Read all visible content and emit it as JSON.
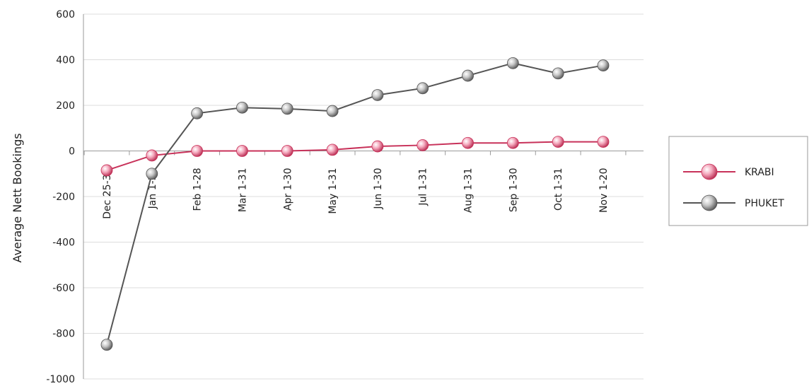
{
  "chart_data": {
    "type": "line",
    "ylabel": "Average Nett Bookings",
    "xlabel": "",
    "ylim": [
      -1000,
      600
    ],
    "yticks": [
      600,
      400,
      200,
      0,
      -200,
      -400,
      -600,
      -800,
      -1000
    ],
    "grid": true,
    "legend_position": "right",
    "categories": [
      "Dec 25-31",
      "Jan 1-31",
      "Feb 1-28",
      "Mar 1-31",
      "Apr 1-30",
      "May 1-31",
      "Jun 1-30",
      "Jul 1-31",
      "Aug 1-31",
      "Sep 1-30",
      "Oct 1-31",
      "Nov 1-20"
    ],
    "series": [
      {
        "name": "KRABI",
        "color": "#c8325a",
        "marker_color": "#f3a2b8",
        "values": [
          -85,
          -20,
          0,
          0,
          0,
          5,
          20,
          25,
          35,
          35,
          40,
          40
        ]
      },
      {
        "name": "PHUKET",
        "color": "#555555",
        "marker_color": "#bdbdbd",
        "values": [
          -850,
          -100,
          165,
          190,
          185,
          175,
          245,
          275,
          330,
          385,
          340,
          375
        ]
      }
    ]
  }
}
